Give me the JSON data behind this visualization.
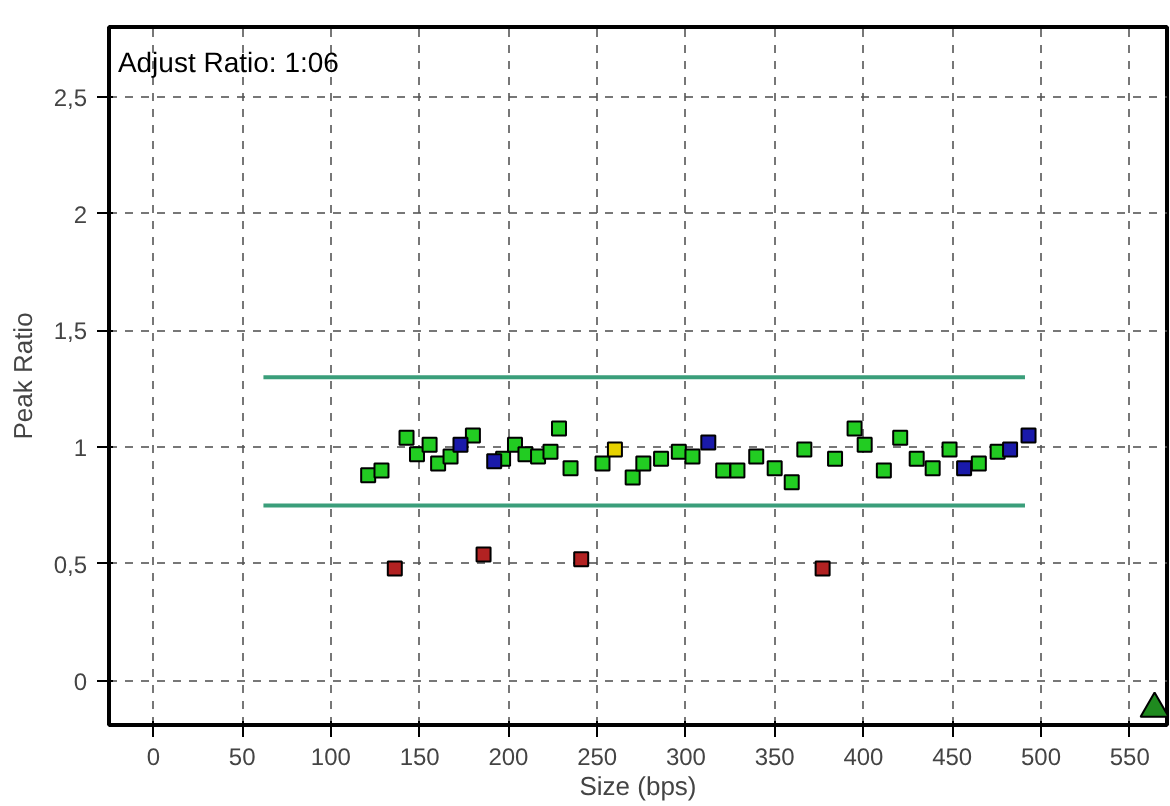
{
  "chart_data": {
    "type": "scatter",
    "xlabel": "Size (bps)",
    "ylabel": "Peak Ratio",
    "annotations": [
      "Adjust Ratio: 1:06"
    ],
    "xlim": [
      -25,
      571
    ],
    "ylim": [
      -0.19,
      2.8
    ],
    "xticks": [
      0,
      50,
      100,
      150,
      200,
      250,
      300,
      350,
      400,
      450,
      500,
      550
    ],
    "yticks": [
      0,
      {
        "value": 0.5,
        "label": "0,5"
      },
      1,
      {
        "value": 1.5,
        "label": "1,5"
      },
      2,
      {
        "value": 2.5,
        "label": "2,5"
      }
    ],
    "grid": true,
    "marker": "square",
    "series": [
      {
        "color": "#3a9e7a",
        "type": "line",
        "marker": "none",
        "x": [
          62,
          491
        ],
        "values": [
          1.3,
          1.3
        ]
      },
      {
        "color": "#3a9e7a",
        "type": "line",
        "marker": "none",
        "x": [
          62,
          491
        ],
        "values": [
          0.75,
          0.75
        ]
      },
      {
        "color": "#22cc22",
        "x": [
          121,
          128.5,
          142.6,
          148.5,
          155.6,
          160.4,
          167.4,
          180,
          197,
          203.7,
          209.6,
          216.7,
          223.7,
          228.5,
          235,
          253,
          270,
          276,
          286,
          296,
          303.7,
          321,
          329,
          339.6,
          350,
          359.6,
          366.7,
          384,
          395,
          400.7,
          411.5,
          420.7,
          430,
          439,
          448.5,
          465,
          475.6
        ],
        "values": [
          0.88,
          0.9,
          1.04,
          0.97,
          1.01,
          0.93,
          0.96,
          1.05,
          0.95,
          1.01,
          0.97,
          0.96,
          0.98,
          1.08,
          0.91,
          0.93,
          0.87,
          0.93,
          0.95,
          0.98,
          0.96,
          0.9,
          0.9,
          0.96,
          0.91,
          0.85,
          0.99,
          0.95,
          1.08,
          1.01,
          0.9,
          1.04,
          0.95,
          0.91,
          0.99,
          0.93,
          0.98
        ]
      },
      {
        "color": "#1a1aaa",
        "x": [
          173,
          192,
          312.6,
          456.7,
          482.6,
          493
        ],
        "values": [
          1.01,
          0.94,
          1.02,
          0.91,
          0.99,
          1.05
        ]
      },
      {
        "color": "#e6d200",
        "x": [
          260
        ],
        "values": [
          0.99
        ]
      },
      {
        "color": "#b22222",
        "x": [
          136,
          186,
          241,
          377
        ],
        "values": [
          0.48,
          0.54,
          0.52,
          0.48
        ]
      },
      {
        "color": "#1f8a1f",
        "marker": "triangle",
        "x": [
          564
        ],
        "values": [
          -0.12
        ]
      }
    ]
  }
}
